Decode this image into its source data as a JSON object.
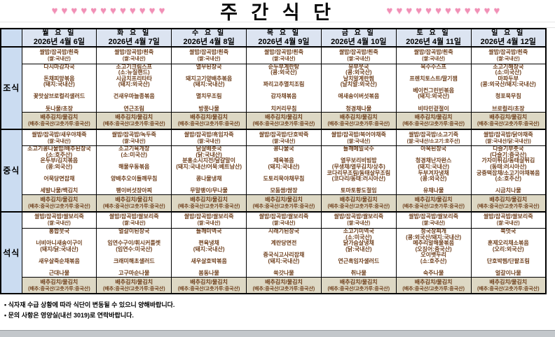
{
  "title": "주 간 식 단",
  "decor": {
    "hearts_left": "♥♥♥♥♥♥♥♥♥♥♥♥",
    "hearts_right": "♥♥♥♥♥♥♥♥♥♥♥♥",
    "heart_color": "#f190b6"
  },
  "colors": {
    "day_header_bg": "#dce4f1",
    "meal_label_bg": "#cbdcf1",
    "kimchi_row_bg": "#ddd8c4",
    "menu_text": "#6e3f1c"
  },
  "meals": {
    "breakfast": "조식",
    "lunch": "중식",
    "dinner": "석식"
  },
  "kimchi": {
    "line1": "배추김치/물김치",
    "line2": "(배추:중국산/고춧가루:중국산)"
  },
  "days": [
    {
      "name": "월 요 일",
      "date": "2026년 4월 6일",
      "breakfast_rice1": "쌀밥/잡곡밥/흰죽",
      "breakfast_rice2": "(쌀:국내산)",
      "breakfast_menu": "다시마감자국\n\n돈채피망볶음\n(돼지:국내산)\n\n꽃맛살브로컬리샐러드\n\n돗나물/초장",
      "lunch_rice1": "쌀밥/잡곡밥/새우야채죽",
      "lunch_rice2": "(쌀:국내산)",
      "lunch_menu": "소고기콩나물밥/배추된장국\n(소:호주산)\n온두부/김치볶음\n(콩:외국산)\n\n어묵당면잡채\n\n세발나물/백김치",
      "dinner_rice1": "쌀밥/잡곡밥/쌀보리죽",
      "dinner_rice2": "(쌀:국내산)",
      "dinner_menu": "홍합뭇국\n\n너비아니새송이구이\n(돼지/닭:국내산)\n\n새우살죽순채볶음\n\n근대나물"
    },
    {
      "name": "화 요 일",
      "date": "2026년 4월 7일",
      "breakfast_rice1": "쌀밥/잡곡밥/흰죽",
      "breakfast_rice2": "(쌀:국내산)",
      "breakfast_menu": "소고기크림스프\n(소:뉴질랜드)\n시금치프리타타\n(돼지:외국산)\n\n건새우마늘종볶음\n\n연근조림",
      "lunch_rice1": "쌀밥/잡곡밥/녹두죽",
      "lunch_rice2": "(쌀:국내산)",
      "lunch_menu": "소고기육개장\n(소:미국산)\n\n해물우동볶음\n\n양배추오이들깨무침\n\n팽이버섯장아찌",
      "dinner_rice1": "쌀밥/잡곡밥/쌀보리죽",
      "dinner_rice2": "(쌀:국내산)",
      "dinner_menu": "얼갈이된장국\n\n임연수구이/휘시커틀렛\n(임연수:미국산)\n\n크래미해초샐러드\n\n고구마순나물"
    },
    {
      "name": "수 요 일",
      "date": "2026년 4월 8일",
      "breakfast_rice1": "쌀밥/잡곡밥/흰죽",
      "breakfast_rice2": "(쌀:국내산)",
      "breakfast_menu": "열무된장국\n\n돼지고기양배추볶음\n(돼지:국내산)\n\n멸치무조림\n\n방풍나물",
      "lunch_rice1": "쌀밥/잡곡밥/흑임자죽",
      "lunch_rice2": "(쌀:국내산)",
      "lunch_menu": "닭살배춧국\n(닭:국내산)\n분홍소시지전/달걀말이\n(돼지:국내산/어묵:베트남산)\n\n콩나물냉채\n\n무말랭이/무나물",
      "dinner_rice1": "쌀밥/잡곡밥/쌀보리죽",
      "dinner_rice2": "(쌀:국내산)",
      "dinner_menu": "들깨미역국\n\n편육냉채\n(돼지:국내산)\n\n새우살호박볶음\n\n봄동나물"
    },
    {
      "name": "목 요 일",
      "date": "2026년 4월 9일",
      "breakfast_rice1": "쌀밥/잡곡밥/흰죽",
      "breakfast_rice2": "(쌀:국내산)",
      "breakfast_menu": "순두부계란탕\n(콩:외국산)\n\n꽈리고추멸치조림\n\n감자채볶음\n\n치커리무침",
      "lunch_rice1": "쌀밥/잡곡밥/단호박죽",
      "lunch_rice2": "(쌀:국내산)",
      "lunch_menu": "콩나물국\n\n제육볶음\n(돼지:국내산)\n\n도토리묵야채무침\n\n모둠쌈/쌈장",
      "dinner_rice1": "쌀밥/잡곡밥/쌀보리죽",
      "dinner_rice2": "(쌀:국내산)",
      "dinner_menu": "시래기된장국\n\n계란당면전\n\n중국식고사리잡채\n(돼지:국내산)\n\n쑥갓나물"
    },
    {
      "name": "금 요 일",
      "date": "2026년 4월 10일",
      "breakfast_rice1": "쌀밥/잡곡밥/흰죽",
      "breakfast_rice2": "(쌀:국내산)",
      "breakfast_menu": "유부뭇국\n(콩:외국산)\n날치알계란찜\n(날치알:외국산)\n\n애새송이버섯볶음\n\n청경채나물",
      "lunch_rice1": "쌀밥/잡곡밥/북어야채죽",
      "lunch_rice2": "(쌀:국내산)",
      "lunch_menu": "들깨메밀국수\n\n열무보리비빔밥\n(무생채/열무김치/상추)\n코다리무조림/동태살무조림\n(코다리/동태:러시아산)\n\n토마토황도절임",
      "dinner_rice1": "쌀밥/잡곡밥/쌀보리죽",
      "dinner_rice2": "(쌀:국내산)",
      "dinner_menu": "소고기미역국\n(소:미국산)\n닭가슴살냉채\n(닭:국내산)\n\n연근흑임자샐러드\n\n취나물"
    },
    {
      "name": "토 요 일",
      "date": "2026년 4월 11일",
      "breakfast_rice1": "쌀밥/잡곡밥/흰죽",
      "breakfast_rice2": "(쌀:국내산)",
      "breakfast_menu": "옥수수스프\n\n프렌치토스트/딸기잼\n\n베이컨그린빈볶음\n(돼지:외국산)\n\n비타민겉절이",
      "lunch_rice1": "쌀밥/잡곡밥/소고기죽",
      "lunch_rice2": "(쌀:국내산/소고기:호주산)",
      "lunch_menu": "아욱된장국\n\n청경채난자완스\n(돼지:국내산)\n두부겨자냉채\n(콩:외국산)\n\n유채나물",
      "dinner_rice1": "쌀밥/잡곡밥/쌀보리죽",
      "dinner_rice2": "(쌀:국내산)",
      "dinner_menu": "청국장찌개\n(콩:외국산/돼지:국내산)\n메추리알해물볶음\n(오징어:중국산)\n오이뱃두리\n(소:호주산)\n\n숙주나물"
    },
    {
      "name": "일 요 일",
      "date": "2026년 4월 12일",
      "breakfast_rice1": "쌀밥/잡곡밥/흰죽",
      "breakfast_rice2": "(쌀:국내산)",
      "breakfast_menu": "소고기해장국\n(소:미국산)\n마파두부\n(콩:외국산/돼지:국내산)\n\n청포묵무침\n\n브로컬리/초장",
      "lunch_rice1": "쌀밥/잡곡밥/닭야채죽",
      "lunch_rice2": "(쌀:국내산/닭:국내산))",
      "lunch_menu": "다슬기부춧국\n(다슬기:중국산)\n가자미튀김/동태살튀김\n(동태:러시아산)\n궁중떡잡채/소고기야채볶음\n(소:호주산)\n\n시금치나물",
      "dinner_rice1": "쌀밥/잡곡밥/쌀보리죽",
      "dinner_rice2": "(쌀:국내산)",
      "dinner_menu": "북엇국\n\n훈제오리채소볶음\n(오리:외국산)\n\n단호박찜/단팥조림\n\n얼갈이나물"
    }
  ],
  "notes": [
    "• 식자재 수급 상황에 따라 식단이 변동될 수 있으니 양해바랍니다.",
    "• 문의 사항은 영양실(내선 3019)로 연락바랍니다."
  ]
}
